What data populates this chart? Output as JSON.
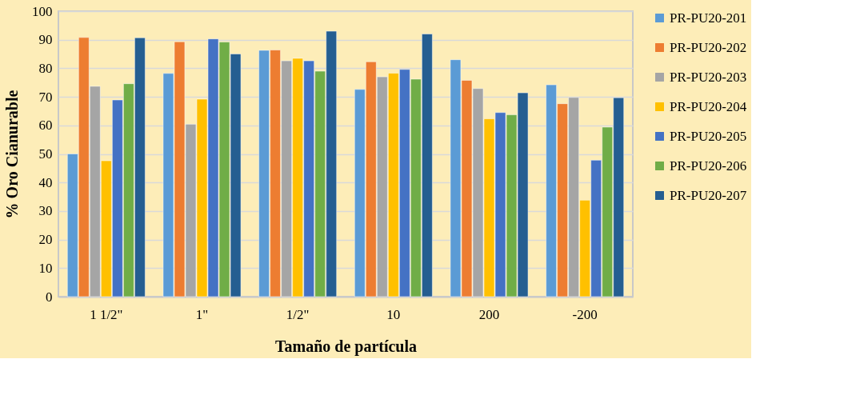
{
  "chart_data": {
    "type": "bar",
    "xlabel": "Tamaño de partícula",
    "ylabel": "% Oro Cianurable",
    "categories": [
      "1 1/2\"",
      "1\"",
      "1/2\"",
      "10",
      "200",
      "-200"
    ],
    "series": [
      {
        "name": "PR-PU20-201",
        "color": "#5b9bd5",
        "values": [
          50,
          78.2,
          86.3,
          72.6,
          83,
          74.2
        ]
      },
      {
        "name": "PR-PU20-202",
        "color": "#ed7d31",
        "values": [
          90.8,
          89.3,
          86.4,
          82.3,
          75.8,
          67.6
        ]
      },
      {
        "name": "PR-PU20-203",
        "color": "#a5a5a5",
        "values": [
          73.7,
          60.4,
          82.6,
          77,
          72.9,
          69.8
        ]
      },
      {
        "name": "PR-PU20-204",
        "color": "#ffc000",
        "values": [
          47.6,
          69.2,
          83.5,
          78.3,
          62.3,
          33.8
        ]
      },
      {
        "name": "PR-PU20-205",
        "color": "#4472c4",
        "values": [
          68.9,
          90.3,
          82.6,
          79.6,
          64.5,
          47.8
        ]
      },
      {
        "name": "PR-PU20-206",
        "color": "#70ad47",
        "values": [
          74.6,
          89.2,
          79,
          76.2,
          63.7,
          59.4
        ]
      },
      {
        "name": "PR-PU20-207",
        "color": "#255e91",
        "values": [
          90.7,
          85,
          93,
          92,
          71.4,
          69.7
        ]
      }
    ],
    "ylim": [
      0,
      100
    ],
    "yticks": [
      0,
      10,
      20,
      30,
      40,
      50,
      60,
      70,
      80,
      90,
      100
    ],
    "grid": "y",
    "legend": "right"
  }
}
